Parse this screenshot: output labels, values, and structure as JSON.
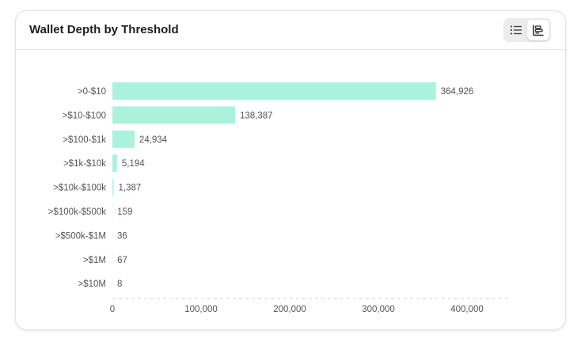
{
  "card": {
    "title": "Wallet Depth by Threshold"
  },
  "toolbar": {
    "list_view": {
      "icon": "list-icon",
      "active": false
    },
    "chart_view": {
      "icon": "bar-chart-icon",
      "active": true
    }
  },
  "colors": {
    "bar": "#abf2dc",
    "label": "#555555",
    "value": "#555555",
    "axis_dash": "#cfcfcf"
  },
  "chart_data": {
    "type": "bar",
    "orientation": "horizontal",
    "categories": [
      ">0-$10",
      ">$10-$100",
      ">$100-$1k",
      ">$1k-$10k",
      ">$10k-$100k",
      ">$100k-$500k",
      ">$500k-$1M",
      ">$1M",
      ">$10M"
    ],
    "values": [
      364926,
      138387,
      24934,
      5194,
      1387,
      159,
      36,
      67,
      8
    ],
    "value_labels": [
      "364,926",
      "138,387",
      "24,934",
      "5,194",
      "1,387",
      "159",
      "36",
      "67",
      "8"
    ],
    "x_ticks": [
      0,
      100000,
      200000,
      300000,
      400000
    ],
    "x_tick_labels": [
      "0",
      "100,000",
      "200,000",
      "300,000",
      "400,000"
    ],
    "xlim": [
      0,
      450000
    ],
    "grid": false,
    "legend": "none"
  }
}
